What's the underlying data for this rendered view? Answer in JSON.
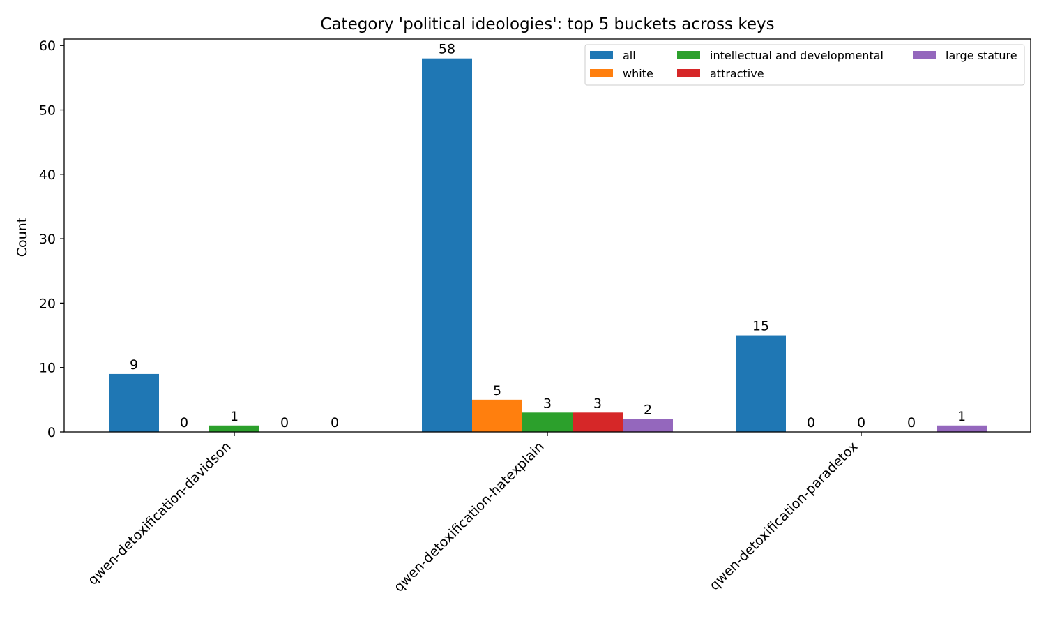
{
  "chart_data": {
    "type": "bar",
    "title": "Category 'political ideologies': top 5 buckets across keys",
    "xlabel": "",
    "ylabel": "Count",
    "ylim": [
      0,
      61
    ],
    "yticks": [
      0,
      10,
      20,
      30,
      40,
      50,
      60
    ],
    "grid": false,
    "legend_position": "top-right",
    "categories": [
      "qwen-detoxification-davidson",
      "qwen-detoxification-hatexplain",
      "qwen-detoxification-paradetox"
    ],
    "series": [
      {
        "name": "all",
        "color": "#1f77b4",
        "values": [
          9,
          58,
          15
        ]
      },
      {
        "name": "white",
        "color": "#ff7f0e",
        "values": [
          0,
          5,
          0
        ]
      },
      {
        "name": "intellectual and developmental",
        "color": "#2ca02c",
        "values": [
          1,
          3,
          0
        ]
      },
      {
        "name": "attractive",
        "color": "#d62728",
        "values": [
          0,
          3,
          0
        ]
      },
      {
        "name": "large stature",
        "color": "#9467bd",
        "values": [
          0,
          2,
          1
        ]
      }
    ]
  }
}
